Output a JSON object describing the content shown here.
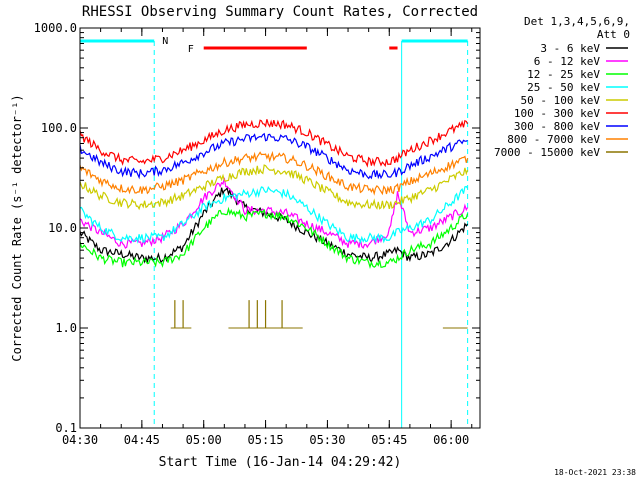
{
  "chart_data": {
    "type": "line",
    "title": "RHESSI Observing Summary Count Rates, Corrected",
    "xlabel": "Start Time (16-Jan-14 04:29:42)",
    "ylabel": "Corrected Count Rate (s⁻¹ detector⁻¹)",
    "y_scale": "log",
    "ylim": [
      0.1,
      1000
    ],
    "xlim": [
      "04:30",
      "06:07"
    ],
    "x_ticks": [
      "04:30",
      "04:45",
      "05:00",
      "05:15",
      "05:30",
      "05:45",
      "06:00"
    ],
    "y_ticks": [
      "0.1",
      "1.0",
      "10.0",
      "100.0",
      "1000.0"
    ],
    "legend_header": [
      "Det 1,3,4,5,6,9,",
      "Att 0"
    ],
    "legend_position": "right",
    "timestamp": "18-Oct-2021 23:38",
    "annotations": {
      "night_label": "N",
      "flare_label": "F",
      "night_intervals": [
        [
          "04:30",
          "04:48"
        ],
        [
          "05:48",
          "06:04"
        ]
      ],
      "flare_intervals": [
        [
          "05:00",
          "05:25"
        ],
        [
          "05:45",
          "05:47"
        ]
      ]
    },
    "series": [
      {
        "name": "3 - 6 keV",
        "color": "#000000",
        "x": [
          "04:30",
          "04:35",
          "04:40",
          "04:45",
          "04:50",
          "04:55",
          "05:00",
          "05:05",
          "05:10",
          "05:15",
          "05:20",
          "05:25",
          "05:30",
          "05:35",
          "05:40",
          "05:45",
          "05:47",
          "05:50",
          "05:55",
          "06:00",
          "06:04"
        ],
        "values": [
          9.0,
          6.0,
          5.5,
          5.0,
          5.0,
          6.5,
          14.0,
          25.0,
          16.0,
          14.0,
          12.0,
          9.0,
          7.0,
          5.5,
          5.0,
          5.5,
          6.0,
          5.0,
          5.5,
          7.5,
          11.0
        ]
      },
      {
        "name": "6 - 12 keV",
        "color": "#ff00ff",
        "x": [
          "04:30",
          "04:35",
          "04:40",
          "04:45",
          "04:50",
          "04:55",
          "05:00",
          "05:05",
          "05:10",
          "05:15",
          "05:20",
          "05:25",
          "05:30",
          "05:35",
          "05:40",
          "05:45",
          "05:47",
          "05:50",
          "05:55",
          "06:00",
          "06:04"
        ],
        "values": [
          12.0,
          9.0,
          7.0,
          7.0,
          8.0,
          11.0,
          20.0,
          30.0,
          15.0,
          15.0,
          14.0,
          11.0,
          9.0,
          7.0,
          7.0,
          9.0,
          22.0,
          9.0,
          10.0,
          13.0,
          16.0
        ]
      },
      {
        "name": "12 - 25 keV",
        "color": "#00ff00",
        "x": [
          "04:30",
          "04:35",
          "04:40",
          "04:45",
          "04:50",
          "04:55",
          "05:00",
          "05:05",
          "05:10",
          "05:15",
          "05:20",
          "05:25",
          "05:30",
          "05:35",
          "05:40",
          "05:45",
          "05:47",
          "05:50",
          "05:55",
          "06:00",
          "06:04"
        ],
        "values": [
          7.0,
          5.0,
          4.5,
          4.5,
          4.5,
          5.5,
          10.0,
          15.0,
          13.0,
          14.0,
          13.0,
          10.0,
          7.0,
          5.0,
          4.5,
          4.5,
          5.0,
          6.0,
          7.0,
          10.0,
          14.0
        ]
      },
      {
        "name": "25 - 50 keV",
        "color": "#00ffff",
        "x": [
          "04:30",
          "04:35",
          "04:40",
          "04:45",
          "04:50",
          "04:55",
          "05:00",
          "05:05",
          "05:10",
          "05:15",
          "05:20",
          "05:25",
          "05:30",
          "05:35",
          "05:40",
          "05:45",
          "05:47",
          "05:50",
          "05:55",
          "06:00",
          "06:04"
        ],
        "values": [
          15.0,
          10.0,
          8.0,
          8.0,
          8.0,
          11.0,
          16.0,
          20.0,
          22.0,
          24.0,
          22.0,
          16.0,
          11.0,
          8.0,
          8.0,
          8.0,
          9.0,
          10.0,
          12.0,
          18.0,
          25.0
        ]
      },
      {
        "name": "50 - 100 keV",
        "color": "#cccc00",
        "x": [
          "04:30",
          "04:35",
          "04:40",
          "04:45",
          "04:50",
          "04:55",
          "05:00",
          "05:05",
          "05:10",
          "05:15",
          "05:20",
          "05:25",
          "05:30",
          "05:35",
          "05:40",
          "05:45",
          "05:47",
          "05:50",
          "05:55",
          "06:00",
          "06:04"
        ],
        "values": [
          28.0,
          21.0,
          18.0,
          17.0,
          18.0,
          21.0,
          26.0,
          32.0,
          37.0,
          39.0,
          37.0,
          30.0,
          23.0,
          18.0,
          17.0,
          17.0,
          18.0,
          20.0,
          24.0,
          31.0,
          38.0
        ]
      },
      {
        "name": "100 - 300 keV",
        "color": "#ff0000",
        "x": [
          "04:30",
          "04:35",
          "04:40",
          "04:45",
          "04:50",
          "04:55",
          "05:00",
          "05:05",
          "05:10",
          "05:15",
          "05:20",
          "05:25",
          "05:30",
          "05:35",
          "05:40",
          "05:45",
          "05:47",
          "05:50",
          "05:55",
          "06:00",
          "06:04"
        ],
        "values": [
          85.0,
          60.0,
          48.0,
          46.0,
          50.0,
          60.0,
          75.0,
          95.0,
          108.0,
          113.0,
          108.0,
          90.0,
          68.0,
          52.0,
          46.0,
          46.0,
          50.0,
          60.0,
          75.0,
          95.0,
          110.0
        ]
      },
      {
        "name": "300 - 800 keV",
        "color": "#0000ff",
        "x": [
          "04:30",
          "04:35",
          "04:40",
          "04:45",
          "04:50",
          "04:55",
          "05:00",
          "05:05",
          "05:10",
          "05:15",
          "05:20",
          "05:25",
          "05:30",
          "05:35",
          "05:40",
          "05:45",
          "05:47",
          "05:50",
          "05:55",
          "06:00",
          "06:04"
        ],
        "values": [
          62.0,
          45.0,
          37.0,
          35.0,
          38.0,
          45.0,
          57.0,
          70.0,
          78.0,
          82.0,
          78.0,
          65.0,
          50.0,
          38.0,
          34.0,
          34.0,
          36.0,
          42.0,
          52.0,
          65.0,
          75.0
        ]
      },
      {
        "name": "800 - 7000 keV",
        "color": "#ff8000",
        "x": [
          "04:30",
          "04:35",
          "04:40",
          "04:45",
          "04:50",
          "04:55",
          "05:00",
          "05:05",
          "05:10",
          "05:15",
          "05:20",
          "05:25",
          "05:30",
          "05:35",
          "05:40",
          "05:45",
          "05:47",
          "05:50",
          "05:55",
          "06:00",
          "06:04"
        ],
        "values": [
          40.0,
          30.0,
          25.0,
          24.0,
          26.0,
          30.0,
          37.0,
          45.0,
          50.0,
          52.0,
          50.0,
          42.0,
          33.0,
          26.0,
          24.0,
          24.0,
          25.0,
          29.0,
          35.0,
          43.0,
          50.0
        ]
      },
      {
        "name": "7000 - 15000 keV",
        "color": "#8b7500",
        "x": [
          "04:52",
          "04:53",
          "04:54",
          "04:55",
          "04:56",
          "04:57",
          "05:06",
          "05:08",
          "05:10",
          "05:11",
          "05:12",
          "05:13",
          "05:14",
          "05:15",
          "05:16",
          "05:17",
          "05:18",
          "05:19",
          "05:20",
          "05:22",
          "05:24",
          "05:58",
          "06:00",
          "06:02",
          "06:04"
        ],
        "values": [
          1.0,
          1.9,
          1.0,
          1.9,
          1.0,
          1.0,
          1.0,
          1.0,
          1.0,
          1.9,
          1.0,
          1.9,
          1.0,
          1.9,
          1.0,
          1.0,
          1.0,
          1.9,
          1.0,
          1.0,
          1.0,
          1.0,
          1.0,
          1.0,
          1.0
        ]
      }
    ]
  }
}
